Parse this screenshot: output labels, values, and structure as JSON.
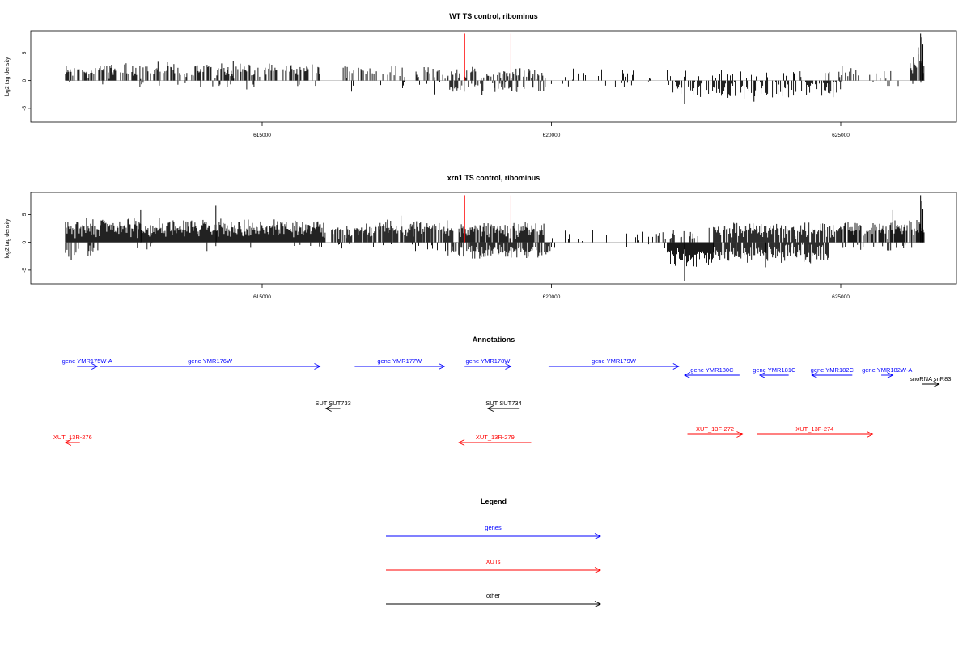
{
  "chart_data": [
    {
      "type": "bar",
      "title": "WT TS control, ribominus",
      "ylabel": "log2 tag density",
      "xlim": [
        611000,
        627000
      ],
      "ylim": [
        -7.5,
        9
      ],
      "yticks": [
        -5,
        0,
        5
      ],
      "xticks": [
        615000,
        620000,
        625000
      ],
      "xtick_labels": [
        "615000",
        "620000",
        "625000"
      ],
      "highlight_positions": [
        618500,
        619300
      ],
      "highlight_height": 8.5,
      "series": [
        {
          "strand": "plus",
          "color": "#000000",
          "segments": [
            {
              "range": [
                611600,
                616000
              ],
              "density": 0.55,
              "mean": 1.8,
              "spread": 1.0
            },
            {
              "range": [
                616400,
                618200
              ],
              "density": 0.4,
              "mean": 1.6,
              "spread": 1.0
            },
            {
              "range": [
                618200,
                619900
              ],
              "density": 0.45,
              "mean": 1.3,
              "spread": 0.8
            },
            {
              "range": [
                620000,
                624200
              ],
              "density": 0.12,
              "mean": 1.0,
              "spread": 0.8
            },
            {
              "range": [
                624200,
                626200
              ],
              "density": 0.2,
              "mean": 1.3,
              "spread": 1.0
            },
            {
              "range": [
                626200,
                626450
              ],
              "density": 0.9,
              "mean": 3.0,
              "spread": 1.5
            }
          ],
          "spikes": [
            [
              626340,
              6.0
            ],
            [
              626380,
              8.5
            ],
            [
              626400,
              7.8
            ],
            [
              626420,
              6.5
            ],
            [
              616000,
              3.6
            ],
            [
              614500,
              3.5
            ],
            [
              613200,
              3.4
            ]
          ]
        },
        {
          "strand": "minus",
          "color": "#000000",
          "segments": [
            {
              "range": [
                611600,
                616000
              ],
              "density": 0.05,
              "mean": 0.8,
              "spread": 0.6
            },
            {
              "range": [
                616000,
                618200
              ],
              "density": 0.1,
              "mean": 1.0,
              "spread": 1.0
            },
            {
              "range": [
                618200,
                619900
              ],
              "density": 0.45,
              "mean": 1.3,
              "spread": 0.8
            },
            {
              "range": [
                619900,
                622100
              ],
              "density": 0.1,
              "mean": 0.8,
              "spread": 0.6
            },
            {
              "range": [
                622100,
                625000
              ],
              "density": 0.55,
              "mean": 1.6,
              "spread": 1.2
            },
            {
              "range": [
                625000,
                626400
              ],
              "density": 0.08,
              "mean": 0.6,
              "spread": 0.4
            }
          ],
          "spikes": [
            [
              622300,
              4.2
            ],
            [
              623500,
              3.8
            ],
            [
              616000,
              2.5
            ],
            [
              618800,
              2.6
            ]
          ]
        }
      ]
    },
    {
      "type": "bar",
      "title": "xrn1 TS control, ribominus",
      "ylabel": "log2 tag density",
      "xlim": [
        611000,
        627000
      ],
      "ylim": [
        -7.5,
        9
      ],
      "yticks": [
        -5,
        0,
        5
      ],
      "xticks": [
        615000,
        620000,
        625000
      ],
      "xtick_labels": [
        "615000",
        "620000",
        "625000"
      ],
      "highlight_positions": [
        618500,
        619300
      ],
      "highlight_height": 8.5,
      "series": [
        {
          "strand": "plus",
          "color": "#000000",
          "segments": [
            {
              "range": [
                611600,
                616100
              ],
              "density": 1.0,
              "mean": 2.6,
              "spread": 1.2
            },
            {
              "range": [
                616200,
                618300
              ],
              "density": 0.85,
              "mean": 2.4,
              "spread": 1.1
            },
            {
              "range": [
                618400,
                619900
              ],
              "density": 0.9,
              "mean": 2.3,
              "spread": 1.1
            },
            {
              "range": [
                620000,
                621800
              ],
              "density": 0.15,
              "mean": 1.2,
              "spread": 0.8
            },
            {
              "range": [
                621800,
                622800
              ],
              "density": 0.35,
              "mean": 1.5,
              "spread": 0.9
            },
            {
              "range": [
                622800,
                625000
              ],
              "density": 0.9,
              "mean": 2.2,
              "spread": 1.1
            },
            {
              "range": [
                625000,
                626450
              ],
              "density": 0.8,
              "mean": 2.5,
              "spread": 1.2
            }
          ],
          "spikes": [
            [
              614200,
              6.6
            ],
            [
              612900,
              5.8
            ],
            [
              617400,
              4.8
            ],
            [
              625900,
              5.8
            ],
            [
              626380,
              8.5
            ],
            [
              626400,
              7.5
            ],
            [
              626420,
              6.0
            ]
          ]
        },
        {
          "strand": "minus",
          "color": "#000000",
          "segments": [
            {
              "range": [
                611600,
                612200
              ],
              "density": 0.4,
              "mean": 1.5,
              "spread": 1.0
            },
            {
              "range": [
                612200,
                616000
              ],
              "density": 0.04,
              "mean": 0.8,
              "spread": 0.5
            },
            {
              "range": [
                616000,
                618200
              ],
              "density": 0.08,
              "mean": 1.0,
              "spread": 0.6
            },
            {
              "range": [
                618200,
                620000
              ],
              "density": 0.8,
              "mean": 1.6,
              "spread": 1.0
            },
            {
              "range": [
                620000,
                622000
              ],
              "density": 0.06,
              "mean": 0.8,
              "spread": 0.5
            },
            {
              "range": [
                622000,
                622800
              ],
              "density": 1.0,
              "mean": 2.6,
              "spread": 1.4
            },
            {
              "range": [
                622800,
                624800
              ],
              "density": 0.85,
              "mean": 2.0,
              "spread": 1.2
            },
            {
              "range": [
                624800,
                626400
              ],
              "density": 0.1,
              "mean": 0.8,
              "spread": 0.5
            }
          ],
          "spikes": [
            [
              622300,
              7.0
            ],
            [
              611700,
              3.2
            ],
            [
              623700,
              4.5
            ]
          ]
        }
      ]
    }
  ],
  "annotations": {
    "title": "Annotations",
    "xlim": [
      611000,
      627000
    ],
    "features": [
      {
        "label": "gene YMR175W-A",
        "type": "gene",
        "start": 611800,
        "end": 612150,
        "strand": "+",
        "row": 0
      },
      {
        "label": "gene YMR176W",
        "type": "gene",
        "start": 612200,
        "end": 616000,
        "strand": "+",
        "row": 0
      },
      {
        "label": "gene YMR177W",
        "type": "gene",
        "start": 616600,
        "end": 618150,
        "strand": "+",
        "row": 0
      },
      {
        "label": "gene YMR178W",
        "type": "gene",
        "start": 618500,
        "end": 619300,
        "strand": "+",
        "row": 0
      },
      {
        "label": "gene YMR179W",
        "type": "gene",
        "start": 619950,
        "end": 622200,
        "strand": "+",
        "row": 0
      },
      {
        "label": "gene YMR180C",
        "type": "gene",
        "start": 622300,
        "end": 623250,
        "strand": "-",
        "row": 1
      },
      {
        "label": "gene YMR181C",
        "type": "gene",
        "start": 623600,
        "end": 624100,
        "strand": "-",
        "row": 1
      },
      {
        "label": "gene YMR182C",
        "type": "gene",
        "start": 624500,
        "end": 625200,
        "strand": "-",
        "row": 1
      },
      {
        "label": "gene YMR182W-A",
        "type": "gene",
        "start": 625700,
        "end": 625900,
        "strand": "+",
        "row": 1
      },
      {
        "label": "snoRNA snR83",
        "type": "other",
        "start": 626400,
        "end": 626700,
        "strand": "+",
        "row": 2
      },
      {
        "label": "SUT SUT733",
        "type": "other",
        "start": 616100,
        "end": 616350,
        "strand": "-",
        "row": 3
      },
      {
        "label": "SUT SUT734",
        "type": "other",
        "start": 618900,
        "end": 619450,
        "strand": "-",
        "row": 3
      },
      {
        "label": "XUT_13R-276",
        "type": "xut",
        "start": 611600,
        "end": 611850,
        "strand": "-",
        "row": 4
      },
      {
        "label": "XUT_13R-279",
        "type": "xut",
        "start": 618400,
        "end": 619650,
        "strand": "-",
        "row": 4
      },
      {
        "label": "XUT_13F-272",
        "type": "xut",
        "start": 622350,
        "end": 623300,
        "strand": "+",
        "row": 5
      },
      {
        "label": "XUT_13F-274",
        "type": "xut",
        "start": 623550,
        "end": 625550,
        "strand": "+",
        "row": 5
      }
    ]
  },
  "legend": {
    "title": "Legend",
    "items": [
      {
        "label": "genes",
        "color": "#0000ff"
      },
      {
        "label": "XUTs",
        "color": "#ff0000"
      },
      {
        "label": "other",
        "color": "#000000"
      }
    ]
  },
  "colors": {
    "gene": "#0000ff",
    "xut": "#ff0000",
    "other": "#000000",
    "highlight": "#ff0000",
    "baseline": "#bebebe"
  }
}
